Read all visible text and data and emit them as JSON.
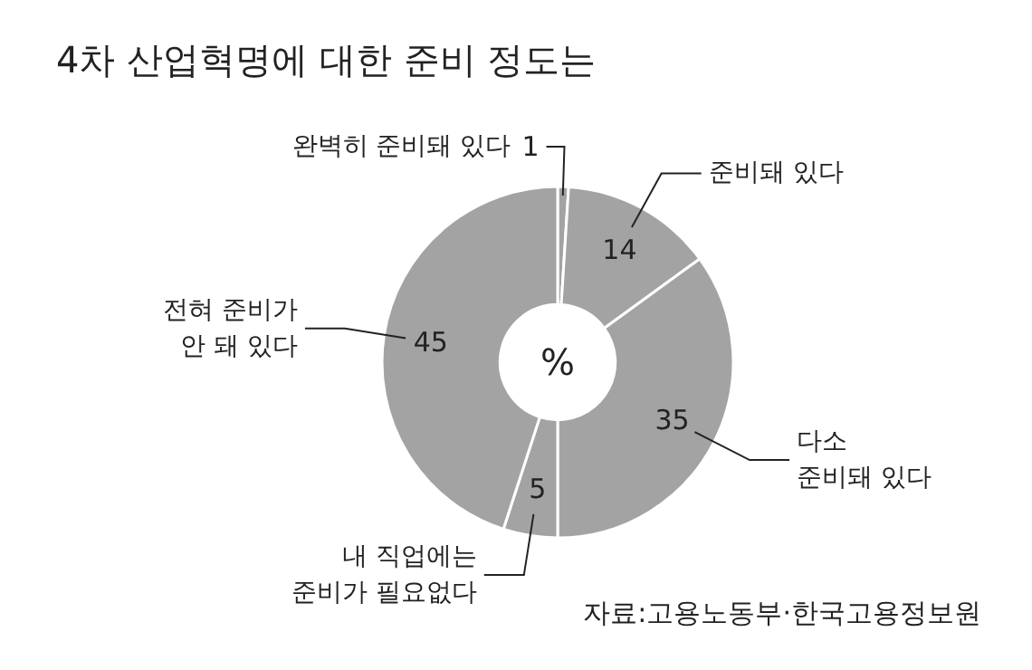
{
  "chart_data": {
    "type": "donut",
    "title": "4차 산업혁명에 대한 준비 정도는",
    "categories": [
      "완벽히 준비돼 있다",
      "준비돼 있다",
      "다소\n준비돼 있다",
      "내 직업에는\n준비가 필요없다",
      "전혀 준비가\n안 돼 있다"
    ],
    "values": [
      1,
      14,
      35,
      5,
      45
    ],
    "colors": [
      "#a3a3a3",
      "#a3a3a3",
      "#a3a3a3",
      "#a3a3a3",
      "#a3a3a3"
    ],
    "data_labels": true,
    "legend": false,
    "annotations": [
      "%",
      "자료:고용노동부·한국고용정보원"
    ]
  }
}
